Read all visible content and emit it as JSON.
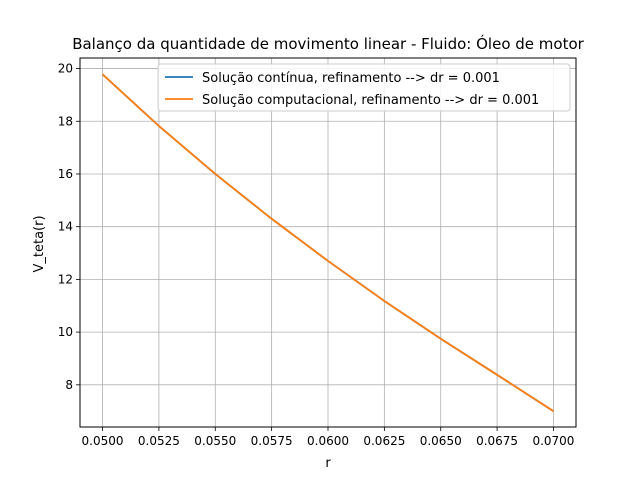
{
  "chart_data": {
    "type": "line",
    "title": "Balanço da quantidade de movimento linear - Fluido: Óleo de motor",
    "xlabel": "r",
    "ylabel": "V_teta(r)",
    "xlim": [
      0.049,
      0.071
    ],
    "ylim": [
      6.4,
      20.4
    ],
    "xticks": [
      0.05,
      0.0525,
      0.055,
      0.0575,
      0.06,
      0.0625,
      0.065,
      0.0675,
      0.07
    ],
    "xtick_labels": [
      "0.0500",
      "0.0525",
      "0.0550",
      "0.0575",
      "0.0600",
      "0.0625",
      "0.0650",
      "0.0675",
      "0.0700"
    ],
    "yticks": [
      8,
      10,
      12,
      14,
      16,
      18,
      20
    ],
    "ytick_labels": [
      "8",
      "10",
      "12",
      "14",
      "16",
      "18",
      "20"
    ],
    "grid": true,
    "legend_position": "upper-right",
    "x": [
      0.05,
      0.0525,
      0.055,
      0.0575,
      0.06,
      0.0625,
      0.065,
      0.0675,
      0.07
    ],
    "series": [
      {
        "name": "Solução contínua, refinamento --> dr = 0.001",
        "color": "#1f77b4",
        "values": [
          19.78,
          17.82,
          16.0,
          14.3,
          12.7,
          11.18,
          9.75,
          8.38,
          7.0
        ]
      },
      {
        "name": "Solução computacional, refinamento --> dr = 0.001",
        "color": "#ff7f0e",
        "values": [
          19.78,
          17.82,
          16.0,
          14.3,
          12.7,
          11.18,
          9.75,
          8.38,
          7.0
        ]
      }
    ]
  }
}
